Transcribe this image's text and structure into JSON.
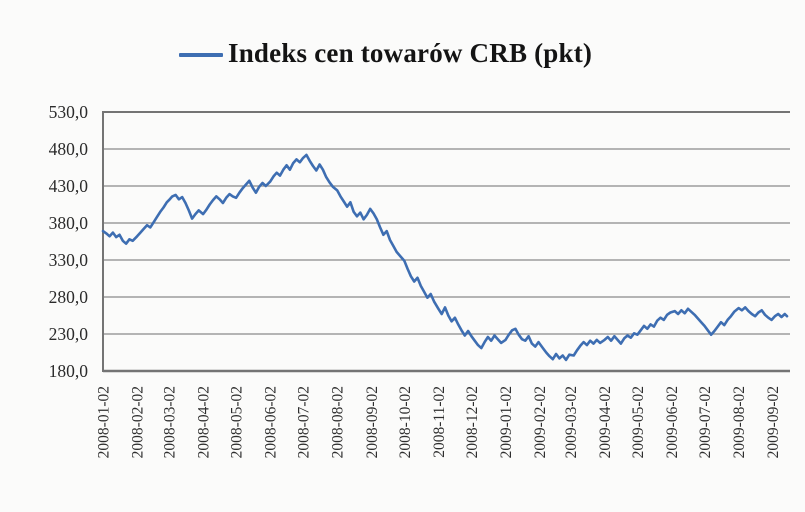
{
  "legend": {
    "series_label": "Indeks cen towarów CRB (pkt)"
  },
  "chart_data": {
    "type": "line",
    "title": "Indeks cen towarów CRB (pkt)",
    "xlabel": "",
    "ylabel": "",
    "ylim": [
      180,
      530
    ],
    "grid": "horizontal",
    "legend_position": "top",
    "y_ticks": [
      530,
      480,
      430,
      380,
      330,
      280,
      230,
      180
    ],
    "y_tick_labels": [
      "530,0",
      "480,0",
      "430,0",
      "380,0",
      "330,0",
      "280,0",
      "230,0",
      "180,0"
    ],
    "x_tick_labels": [
      "2008-01-02",
      "2008-02-02",
      "2008-03-02",
      "2008-04-02",
      "2008-05-02",
      "2008-06-02",
      "2008-07-02",
      "2008-08-02",
      "2008-09-02",
      "2008-10-02",
      "2008-11-02",
      "2008-12-02",
      "2009-01-02",
      "2009-02-02",
      "2009-03-02",
      "2009-04-02",
      "2009-05-02",
      "2009-06-02",
      "2009-07-02",
      "2009-08-02",
      "2009-09-02"
    ],
    "x_start_date": "2008-01-02",
    "x_end_day": 622,
    "colors": {
      "line": "#3e6eb2",
      "grid": "#8a8a8a",
      "border": "#747474",
      "text": "#2b2b2b",
      "background": "#fbfbfa"
    },
    "series": [
      {
        "name": "Indeks cen towarów CRB (pkt)",
        "color": "#3e6eb2",
        "points": [
          [
            0,
            369
          ],
          [
            3,
            366
          ],
          [
            6,
            362
          ],
          [
            9,
            367
          ],
          [
            12,
            361
          ],
          [
            15,
            364
          ],
          [
            18,
            356
          ],
          [
            21,
            352
          ],
          [
            24,
            358
          ],
          [
            27,
            356
          ],
          [
            31,
            362
          ],
          [
            34,
            367
          ],
          [
            37,
            372
          ],
          [
            40,
            377
          ],
          [
            43,
            374
          ],
          [
            46,
            381
          ],
          [
            49,
            388
          ],
          [
            52,
            395
          ],
          [
            55,
            401
          ],
          [
            58,
            408
          ],
          [
            60,
            411
          ],
          [
            63,
            416
          ],
          [
            66,
            418
          ],
          [
            69,
            412
          ],
          [
            72,
            415
          ],
          [
            75,
            407
          ],
          [
            78,
            397
          ],
          [
            81,
            386
          ],
          [
            84,
            392
          ],
          [
            87,
            397
          ],
          [
            91,
            392
          ],
          [
            94,
            398
          ],
          [
            97,
            405
          ],
          [
            100,
            411
          ],
          [
            103,
            416
          ],
          [
            106,
            412
          ],
          [
            109,
            407
          ],
          [
            112,
            414
          ],
          [
            115,
            419
          ],
          [
            118,
            416
          ],
          [
            121,
            414
          ],
          [
            124,
            421
          ],
          [
            127,
            427
          ],
          [
            130,
            432
          ],
          [
            133,
            437
          ],
          [
            136,
            428
          ],
          [
            139,
            421
          ],
          [
            142,
            429
          ],
          [
            145,
            434
          ],
          [
            148,
            430
          ],
          [
            152,
            436
          ],
          [
            155,
            443
          ],
          [
            158,
            448
          ],
          [
            161,
            444
          ],
          [
            164,
            452
          ],
          [
            167,
            458
          ],
          [
            170,
            452
          ],
          [
            173,
            461
          ],
          [
            176,
            466
          ],
          [
            179,
            462
          ],
          [
            182,
            468
          ],
          [
            185,
            472
          ],
          [
            188,
            464
          ],
          [
            191,
            457
          ],
          [
            194,
            451
          ],
          [
            197,
            459
          ],
          [
            200,
            452
          ],
          [
            203,
            442
          ],
          [
            206,
            435
          ],
          [
            209,
            429
          ],
          [
            213,
            424
          ],
          [
            216,
            416
          ],
          [
            219,
            409
          ],
          [
            222,
            402
          ],
          [
            225,
            408
          ],
          [
            228,
            395
          ],
          [
            231,
            389
          ],
          [
            234,
            394
          ],
          [
            237,
            385
          ],
          [
            240,
            391
          ],
          [
            243,
            399
          ],
          [
            246,
            393
          ],
          [
            249,
            385
          ],
          [
            252,
            374
          ],
          [
            255,
            364
          ],
          [
            258,
            369
          ],
          [
            261,
            357
          ],
          [
            264,
            349
          ],
          [
            267,
            341
          ],
          [
            271,
            334
          ],
          [
            274,
            329
          ],
          [
            277,
            318
          ],
          [
            280,
            308
          ],
          [
            283,
            301
          ],
          [
            286,
            306
          ],
          [
            289,
            295
          ],
          [
            292,
            287
          ],
          [
            295,
            279
          ],
          [
            298,
            284
          ],
          [
            301,
            274
          ],
          [
            305,
            264
          ],
          [
            308,
            257
          ],
          [
            311,
            266
          ],
          [
            314,
            255
          ],
          [
            317,
            247
          ],
          [
            320,
            252
          ],
          [
            323,
            243
          ],
          [
            326,
            235
          ],
          [
            329,
            228
          ],
          [
            332,
            234
          ],
          [
            335,
            227
          ],
          [
            338,
            221
          ],
          [
            341,
            215
          ],
          [
            344,
            211
          ],
          [
            347,
            219
          ],
          [
            350,
            226
          ],
          [
            353,
            221
          ],
          [
            356,
            228
          ],
          [
            359,
            223
          ],
          [
            362,
            218
          ],
          [
            366,
            222
          ],
          [
            369,
            229
          ],
          [
            372,
            235
          ],
          [
            375,
            237
          ],
          [
            378,
            229
          ],
          [
            381,
            223
          ],
          [
            384,
            221
          ],
          [
            387,
            227
          ],
          [
            390,
            217
          ],
          [
            393,
            213
          ],
          [
            396,
            219
          ],
          [
            400,
            211
          ],
          [
            403,
            205
          ],
          [
            406,
            200
          ],
          [
            409,
            196
          ],
          [
            412,
            203
          ],
          [
            415,
            197
          ],
          [
            418,
            201
          ],
          [
            421,
            195
          ],
          [
            424,
            202
          ],
          [
            428,
            201
          ],
          [
            431,
            208
          ],
          [
            434,
            214
          ],
          [
            437,
            219
          ],
          [
            440,
            215
          ],
          [
            443,
            221
          ],
          [
            446,
            217
          ],
          [
            449,
            222
          ],
          [
            452,
            218
          ],
          [
            456,
            222
          ],
          [
            459,
            226
          ],
          [
            462,
            221
          ],
          [
            465,
            227
          ],
          [
            468,
            222
          ],
          [
            471,
            217
          ],
          [
            474,
            224
          ],
          [
            477,
            228
          ],
          [
            480,
            225
          ],
          [
            483,
            231
          ],
          [
            486,
            229
          ],
          [
            489,
            235
          ],
          [
            492,
            241
          ],
          [
            495,
            237
          ],
          [
            498,
            243
          ],
          [
            501,
            240
          ],
          [
            504,
            248
          ],
          [
            507,
            252
          ],
          [
            510,
            249
          ],
          [
            513,
            256
          ],
          [
            516,
            259
          ],
          [
            520,
            261
          ],
          [
            523,
            257
          ],
          [
            526,
            262
          ],
          [
            529,
            258
          ],
          [
            532,
            264
          ],
          [
            535,
            260
          ],
          [
            538,
            256
          ],
          [
            541,
            251
          ],
          [
            544,
            246
          ],
          [
            547,
            241
          ],
          [
            550,
            235
          ],
          [
            553,
            229
          ],
          [
            556,
            234
          ],
          [
            559,
            240
          ],
          [
            562,
            246
          ],
          [
            565,
            242
          ],
          [
            568,
            249
          ],
          [
            571,
            254
          ],
          [
            574,
            260
          ],
          [
            578,
            265
          ],
          [
            581,
            262
          ],
          [
            584,
            266
          ],
          [
            587,
            261
          ],
          [
            590,
            257
          ],
          [
            593,
            254
          ],
          [
            596,
            259
          ],
          [
            599,
            262
          ],
          [
            602,
            256
          ],
          [
            605,
            252
          ],
          [
            608,
            249
          ],
          [
            611,
            254
          ],
          [
            614,
            257
          ],
          [
            617,
            253
          ],
          [
            620,
            257
          ],
          [
            622,
            254
          ]
        ]
      }
    ]
  }
}
